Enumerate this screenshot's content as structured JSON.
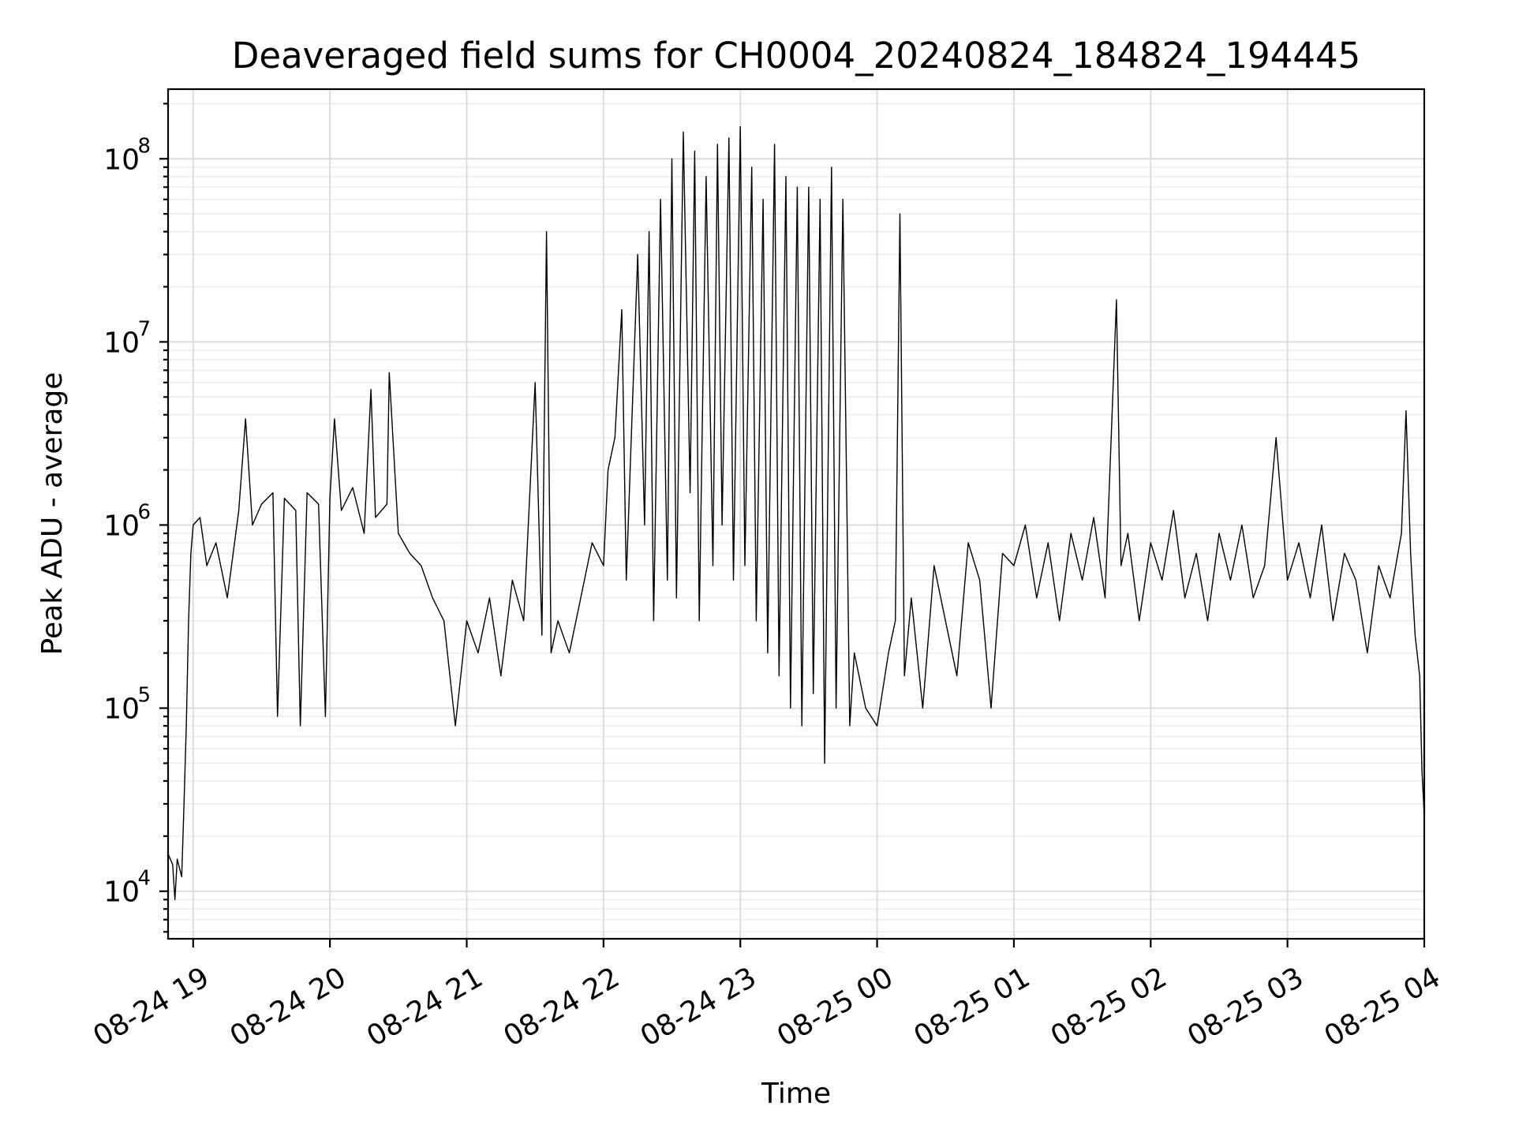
{
  "chart_data": {
    "type": "line",
    "title": "Deaveraged field sums for CH0004_20240824_184824_194445",
    "xlabel": "Time",
    "ylabel": "Peak ADU - average",
    "y_scale": "log",
    "ylim": [
      5500,
      240000000
    ],
    "xlim": [
      "2024-08-24 18:49",
      "2024-08-25 04:00"
    ],
    "grid": true,
    "line_color": "#000000",
    "x_tick_labels": [
      "08-24 19",
      "08-24 20",
      "08-24 21",
      "08-24 22",
      "08-24 23",
      "08-25 00",
      "08-25 01",
      "08-25 02",
      "08-25 03",
      "08-25 04"
    ],
    "x_ticks": [
      "2024-08-24 19:00",
      "2024-08-24 20:00",
      "2024-08-24 21:00",
      "2024-08-24 22:00",
      "2024-08-24 23:00",
      "2024-08-25 00:00",
      "2024-08-25 01:00",
      "2024-08-25 02:00",
      "2024-08-25 03:00",
      "2024-08-25 04:00"
    ],
    "y_ticks": [
      {
        "value": 10000,
        "base": "10",
        "exp": "4"
      },
      {
        "value": 100000,
        "base": "10",
        "exp": "5"
      },
      {
        "value": 1000000,
        "base": "10",
        "exp": "6"
      },
      {
        "value": 10000000,
        "base": "10",
        "exp": "7"
      },
      {
        "value": 100000000,
        "base": "10",
        "exp": "8"
      }
    ],
    "series": [
      {
        "points": [
          [
            "2024-08-24 18:49",
            16000
          ],
          [
            "2024-08-24 18:51",
            14000
          ],
          [
            "2024-08-24 18:52",
            9000
          ],
          [
            "2024-08-24 18:53",
            15000
          ],
          [
            "2024-08-24 18:55",
            12000
          ],
          [
            "2024-08-24 18:56",
            30000
          ],
          [
            "2024-08-24 18:57",
            80000
          ],
          [
            "2024-08-24 18:58",
            300000
          ],
          [
            "2024-08-24 18:59",
            700000
          ],
          [
            "2024-08-24 19:00",
            1000000
          ],
          [
            "2024-08-24 19:03",
            1100000
          ],
          [
            "2024-08-24 19:06",
            600000
          ],
          [
            "2024-08-24 19:10",
            800000
          ],
          [
            "2024-08-24 19:15",
            400000
          ],
          [
            "2024-08-24 19:20",
            1200000
          ],
          [
            "2024-08-24 19:23",
            3800000
          ],
          [
            "2024-08-24 19:26",
            1000000
          ],
          [
            "2024-08-24 19:30",
            1300000
          ],
          [
            "2024-08-24 19:35",
            1500000
          ],
          [
            "2024-08-24 19:37",
            90000
          ],
          [
            "2024-08-24 19:40",
            1400000
          ],
          [
            "2024-08-24 19:45",
            1200000
          ],
          [
            "2024-08-24 19:47",
            80000
          ],
          [
            "2024-08-24 19:50",
            1500000
          ],
          [
            "2024-08-24 19:55",
            1300000
          ],
          [
            "2024-08-24 19:58",
            90000
          ],
          [
            "2024-08-24 20:00",
            1400000
          ],
          [
            "2024-08-24 20:02",
            3800000
          ],
          [
            "2024-08-24 20:05",
            1200000
          ],
          [
            "2024-08-24 20:10",
            1600000
          ],
          [
            "2024-08-24 20:15",
            900000
          ],
          [
            "2024-08-24 20:18",
            5500000
          ],
          [
            "2024-08-24 20:20",
            1100000
          ],
          [
            "2024-08-24 20:25",
            1300000
          ],
          [
            "2024-08-24 20:26",
            6800000
          ],
          [
            "2024-08-24 20:30",
            900000
          ],
          [
            "2024-08-24 20:35",
            700000
          ],
          [
            "2024-08-24 20:40",
            600000
          ],
          [
            "2024-08-24 20:45",
            400000
          ],
          [
            "2024-08-24 20:50",
            300000
          ],
          [
            "2024-08-24 20:55",
            80000
          ],
          [
            "2024-08-24 21:00",
            300000
          ],
          [
            "2024-08-24 21:05",
            200000
          ],
          [
            "2024-08-24 21:10",
            400000
          ],
          [
            "2024-08-24 21:15",
            150000
          ],
          [
            "2024-08-24 21:20",
            500000
          ],
          [
            "2024-08-24 21:25",
            300000
          ],
          [
            "2024-08-24 21:30",
            6000000
          ],
          [
            "2024-08-24 21:33",
            250000
          ],
          [
            "2024-08-24 21:35",
            40000000
          ],
          [
            "2024-08-24 21:37",
            200000
          ],
          [
            "2024-08-24 21:40",
            300000
          ],
          [
            "2024-08-24 21:45",
            200000
          ],
          [
            "2024-08-24 21:50",
            400000
          ],
          [
            "2024-08-24 21:55",
            800000
          ],
          [
            "2024-08-24 22:00",
            600000
          ],
          [
            "2024-08-24 22:02",
            2000000
          ],
          [
            "2024-08-24 22:05",
            3000000
          ],
          [
            "2024-08-24 22:08",
            15000000
          ],
          [
            "2024-08-24 22:10",
            500000
          ],
          [
            "2024-08-24 22:15",
            30000000
          ],
          [
            "2024-08-24 22:18",
            1000000
          ],
          [
            "2024-08-24 22:20",
            40000000
          ],
          [
            "2024-08-24 22:22",
            300000
          ],
          [
            "2024-08-24 22:25",
            60000000
          ],
          [
            "2024-08-24 22:28",
            500000
          ],
          [
            "2024-08-24 22:30",
            100000000
          ],
          [
            "2024-08-24 22:32",
            400000
          ],
          [
            "2024-08-24 22:35",
            140000000
          ],
          [
            "2024-08-24 22:38",
            1500000
          ],
          [
            "2024-08-24 22:40",
            110000000
          ],
          [
            "2024-08-24 22:42",
            300000
          ],
          [
            "2024-08-24 22:45",
            80000000
          ],
          [
            "2024-08-24 22:48",
            600000
          ],
          [
            "2024-08-24 22:50",
            120000000
          ],
          [
            "2024-08-24 22:52",
            1000000
          ],
          [
            "2024-08-24 22:55",
            130000000
          ],
          [
            "2024-08-24 22:57",
            500000
          ],
          [
            "2024-08-24 23:00",
            150000000
          ],
          [
            "2024-08-24 23:02",
            600000
          ],
          [
            "2024-08-24 23:05",
            90000000
          ],
          [
            "2024-08-24 23:07",
            300000
          ],
          [
            "2024-08-24 23:10",
            60000000
          ],
          [
            "2024-08-24 23:12",
            200000
          ],
          [
            "2024-08-24 23:15",
            120000000
          ],
          [
            "2024-08-24 23:17",
            150000
          ],
          [
            "2024-08-24 23:20",
            80000000
          ],
          [
            "2024-08-24 23:22",
            100000
          ],
          [
            "2024-08-24 23:25",
            70000000
          ],
          [
            "2024-08-24 23:27",
            80000
          ],
          [
            "2024-08-24 23:30",
            70000000
          ],
          [
            "2024-08-24 23:32",
            120000
          ],
          [
            "2024-08-24 23:35",
            60000000
          ],
          [
            "2024-08-24 23:37",
            50000
          ],
          [
            "2024-08-24 23:40",
            90000000
          ],
          [
            "2024-08-24 23:42",
            100000
          ],
          [
            "2024-08-24 23:45",
            60000000
          ],
          [
            "2024-08-24 23:48",
            80000
          ],
          [
            "2024-08-24 23:50",
            200000
          ],
          [
            "2024-08-24 23:55",
            100000
          ],
          [
            "2024-08-25 00:00",
            80000
          ],
          [
            "2024-08-25 00:05",
            200000
          ],
          [
            "2024-08-25 00:08",
            300000
          ],
          [
            "2024-08-25 00:10",
            50000000
          ],
          [
            "2024-08-25 00:12",
            150000
          ],
          [
            "2024-08-25 00:15",
            400000
          ],
          [
            "2024-08-25 00:20",
            100000
          ],
          [
            "2024-08-25 00:25",
            600000
          ],
          [
            "2024-08-25 00:30",
            300000
          ],
          [
            "2024-08-25 00:35",
            150000
          ],
          [
            "2024-08-25 00:40",
            800000
          ],
          [
            "2024-08-25 00:45",
            500000
          ],
          [
            "2024-08-25 00:50",
            100000
          ],
          [
            "2024-08-25 00:55",
            700000
          ],
          [
            "2024-08-25 01:00",
            600000
          ],
          [
            "2024-08-25 01:05",
            1000000
          ],
          [
            "2024-08-25 01:10",
            400000
          ],
          [
            "2024-08-25 01:15",
            800000
          ],
          [
            "2024-08-25 01:20",
            300000
          ],
          [
            "2024-08-25 01:25",
            900000
          ],
          [
            "2024-08-25 01:30",
            500000
          ],
          [
            "2024-08-25 01:35",
            1100000
          ],
          [
            "2024-08-25 01:40",
            400000
          ],
          [
            "2024-08-25 01:45",
            17000000
          ],
          [
            "2024-08-25 01:47",
            600000
          ],
          [
            "2024-08-25 01:50",
            900000
          ],
          [
            "2024-08-25 01:55",
            300000
          ],
          [
            "2024-08-25 02:00",
            800000
          ],
          [
            "2024-08-25 02:05",
            500000
          ],
          [
            "2024-08-25 02:10",
            1200000
          ],
          [
            "2024-08-25 02:15",
            400000
          ],
          [
            "2024-08-25 02:20",
            700000
          ],
          [
            "2024-08-25 02:25",
            300000
          ],
          [
            "2024-08-25 02:30",
            900000
          ],
          [
            "2024-08-25 02:35",
            500000
          ],
          [
            "2024-08-25 02:40",
            1000000
          ],
          [
            "2024-08-25 02:45",
            400000
          ],
          [
            "2024-08-25 02:50",
            600000
          ],
          [
            "2024-08-25 02:55",
            3000000
          ],
          [
            "2024-08-25 03:00",
            500000
          ],
          [
            "2024-08-25 03:05",
            800000
          ],
          [
            "2024-08-25 03:10",
            400000
          ],
          [
            "2024-08-25 03:15",
            1000000
          ],
          [
            "2024-08-25 03:20",
            300000
          ],
          [
            "2024-08-25 03:25",
            700000
          ],
          [
            "2024-08-25 03:30",
            500000
          ],
          [
            "2024-08-25 03:35",
            200000
          ],
          [
            "2024-08-25 03:40",
            600000
          ],
          [
            "2024-08-25 03:45",
            400000
          ],
          [
            "2024-08-25 03:50",
            900000
          ],
          [
            "2024-08-25 03:52",
            4200000
          ],
          [
            "2024-08-25 03:54",
            700000
          ],
          [
            "2024-08-25 03:56",
            250000
          ],
          [
            "2024-08-25 03:58",
            150000
          ],
          [
            "2024-08-25 03:59",
            45000
          ],
          [
            "2024-08-25 04:00",
            26000
          ]
        ]
      }
    ]
  }
}
